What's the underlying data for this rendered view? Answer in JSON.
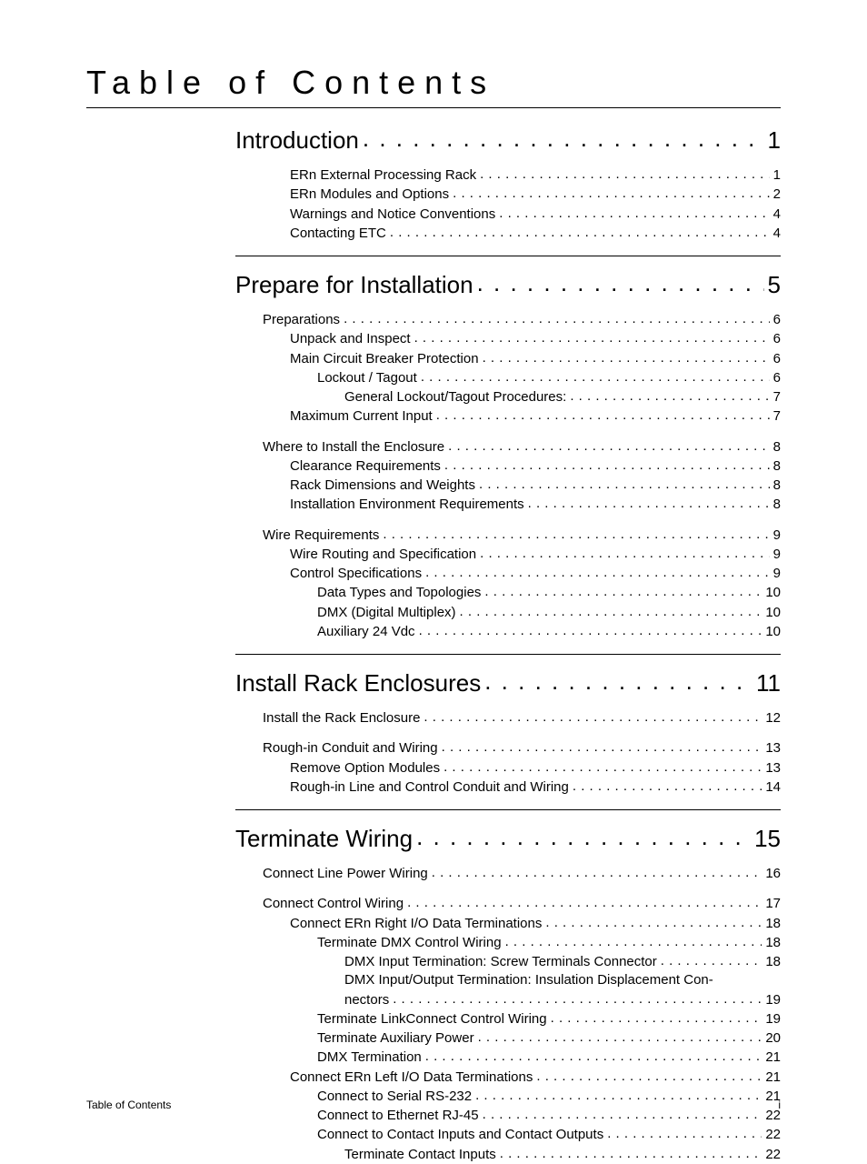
{
  "title": "Table of Contents",
  "footer_left": "Table of Contents",
  "footer_right": "i",
  "sections": [
    {
      "label": "Introduction",
      "page": "1",
      "groups": [
        {
          "items": [
            {
              "level": 3,
              "label": "ERn External Processing Rack",
              "page": "1"
            },
            {
              "level": 3,
              "label": "ERn Modules and Options",
              "page": "2"
            },
            {
              "level": 3,
              "label": "Warnings and Notice Conventions",
              "page": "4"
            },
            {
              "level": 3,
              "label": "Contacting ETC",
              "page": "4"
            }
          ]
        }
      ]
    },
    {
      "label": "Prepare for Installation",
      "page": "5",
      "groups": [
        {
          "items": [
            {
              "level": 2,
              "label": "Preparations",
              "page": "6"
            },
            {
              "level": 3,
              "label": "Unpack and Inspect",
              "page": "6"
            },
            {
              "level": 3,
              "label": "Main Circuit Breaker Protection",
              "page": "6"
            },
            {
              "level": 4,
              "label": "Lockout / Tagout",
              "page": "6"
            },
            {
              "level": 5,
              "label": "General Lockout/Tagout Procedures:",
              "page": "7"
            },
            {
              "level": 3,
              "label": "Maximum Current Input",
              "page": "7"
            }
          ]
        },
        {
          "items": [
            {
              "level": 2,
              "label": "Where to Install the Enclosure",
              "page": "8"
            },
            {
              "level": 3,
              "label": "Clearance Requirements",
              "page": "8"
            },
            {
              "level": 3,
              "label": "Rack Dimensions and Weights",
              "page": "8"
            },
            {
              "level": 3,
              "label": "Installation Environment Requirements",
              "page": "8"
            }
          ]
        },
        {
          "items": [
            {
              "level": 2,
              "label": "Wire Requirements",
              "page": "9"
            },
            {
              "level": 3,
              "label": "Wire Routing and Specification",
              "page": "9"
            },
            {
              "level": 3,
              "label": "Control Specifications",
              "page": "9"
            },
            {
              "level": 4,
              "label": "Data Types and Topologies",
              "page": "10"
            },
            {
              "level": 4,
              "label": "DMX (Digital Multiplex)",
              "page": "10"
            },
            {
              "level": 4,
              "label": "Auxiliary 24 Vdc",
              "page": "10"
            }
          ]
        }
      ]
    },
    {
      "label": "Install Rack Enclosures",
      "page": "11",
      "groups": [
        {
          "items": [
            {
              "level": 2,
              "label": "Install the Rack Enclosure",
              "page": "12"
            }
          ]
        },
        {
          "items": [
            {
              "level": 2,
              "label": "Rough-in Conduit and Wiring",
              "page": "13"
            },
            {
              "level": 3,
              "label": "Remove Option Modules",
              "page": "13"
            },
            {
              "level": 3,
              "label": "Rough-in Line and Control Conduit and Wiring",
              "page": "14"
            }
          ]
        }
      ]
    },
    {
      "label": "Terminate Wiring",
      "page": "15",
      "groups": [
        {
          "items": [
            {
              "level": 2,
              "label": "Connect Line Power Wiring",
              "page": "16"
            }
          ]
        },
        {
          "items": [
            {
              "level": 2,
              "label": "Connect Control Wiring",
              "page": "17"
            },
            {
              "level": 3,
              "label": "Connect ERn Right I/O Data Terminations",
              "page": "18"
            },
            {
              "level": 4,
              "label": "Terminate DMX Control Wiring",
              "page": "18"
            },
            {
              "level": 5,
              "label": "DMX Input Termination: Screw Terminals Connector",
              "page": "18"
            },
            {
              "level": 5,
              "wrap": true,
              "label_line1": "DMX Input/Output Termination: Insulation Displacement Con-",
              "label_line2": "nectors",
              "page": "19"
            },
            {
              "level": 4,
              "label": "Terminate LinkConnect Control Wiring",
              "page": "19"
            },
            {
              "level": 4,
              "label": "Terminate Auxiliary Power",
              "page": "20"
            },
            {
              "level": 4,
              "label": "DMX Termination",
              "page": "21"
            },
            {
              "level": 3,
              "label": "Connect ERn Left I/O Data Terminations",
              "page": "21"
            },
            {
              "level": 4,
              "label": "Connect to Serial RS-232",
              "page": "21"
            },
            {
              "level": 4,
              "label": "Connect to Ethernet RJ-45",
              "page": "22"
            },
            {
              "level": 4,
              "label": "Connect to Contact Inputs and Contact Outputs",
              "page": "22"
            },
            {
              "level": 5,
              "label": "Terminate Contact Inputs",
              "page": "22"
            }
          ]
        }
      ]
    }
  ]
}
